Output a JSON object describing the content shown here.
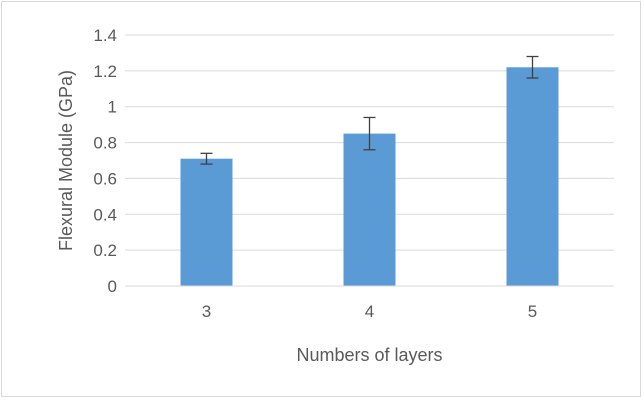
{
  "chart_data": {
    "type": "bar",
    "title": "",
    "xlabel": "Numbers of layers",
    "ylabel": "Flexural Module (GPa)",
    "categories": [
      "3",
      "4",
      "5"
    ],
    "values": [
      0.71,
      0.85,
      1.22
    ],
    "error_bars": [
      0.03,
      0.09,
      0.06
    ],
    "ylim": [
      0,
      1.4
    ],
    "yticks": [
      "0",
      "0.2",
      "0.4",
      "0.6",
      "0.8",
      "1",
      "1.2",
      "1.4"
    ],
    "grid": true,
    "legend": "none",
    "colors": {
      "bar": "#5b9bd5",
      "grid": "#d9d9d9",
      "error": "#404040",
      "text": "#595959"
    }
  }
}
